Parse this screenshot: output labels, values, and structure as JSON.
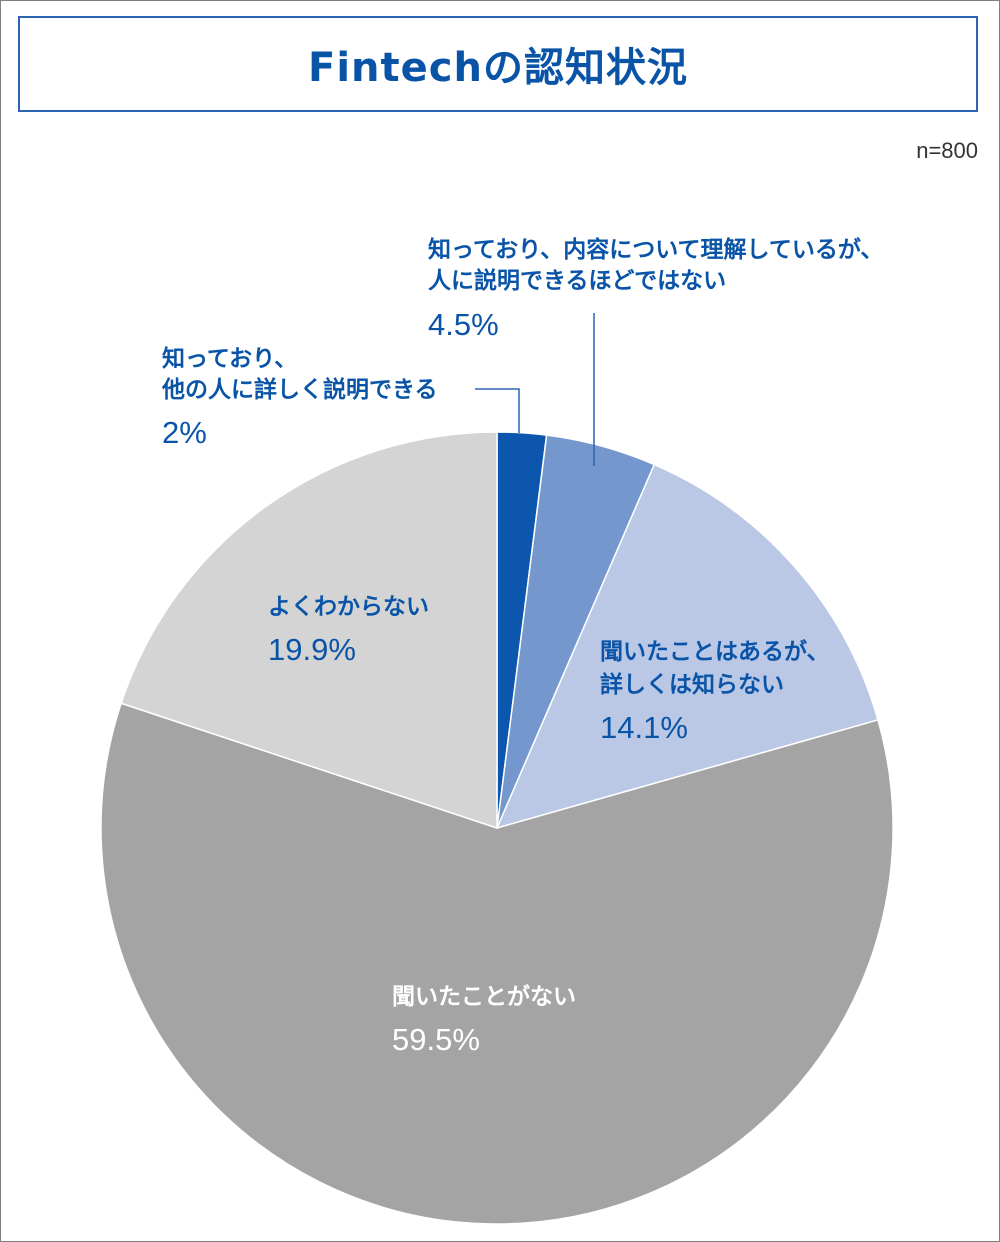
{
  "title": "Fintechの認知状況",
  "sample_size": "n=800",
  "colors": {
    "accent": "#0a54a8",
    "title_border": "#2c63b5",
    "label_blue": "#0a54a8",
    "label_white": "#ffffff"
  },
  "chart_data": {
    "type": "pie",
    "start_angle_deg": 0,
    "direction": "clockwise",
    "slices": [
      {
        "label_lines": [
          "知っており、",
          "他の人に詳しく説明できる"
        ],
        "percent_text": "2%",
        "value": 2.0,
        "color": "#0c57ad"
      },
      {
        "label_lines": [
          "知っており、内容について理解しているが、",
          "人に説明できるほどではない"
        ],
        "percent_text": "4.5%",
        "value": 4.5,
        "color": "#7497cd"
      },
      {
        "label_lines": [
          "聞いたことはあるが、",
          "詳しくは知らない"
        ],
        "percent_text": "14.1%",
        "value": 14.1,
        "color": "#bac8e6"
      },
      {
        "label_lines": [
          "聞いたことがない"
        ],
        "percent_text": "59.5%",
        "value": 59.5,
        "color": "#a3a4a3"
      },
      {
        "label_lines": [
          "よくわからない"
        ],
        "percent_text": "19.9%",
        "value": 19.9,
        "color": "#d4d4d4"
      }
    ]
  }
}
